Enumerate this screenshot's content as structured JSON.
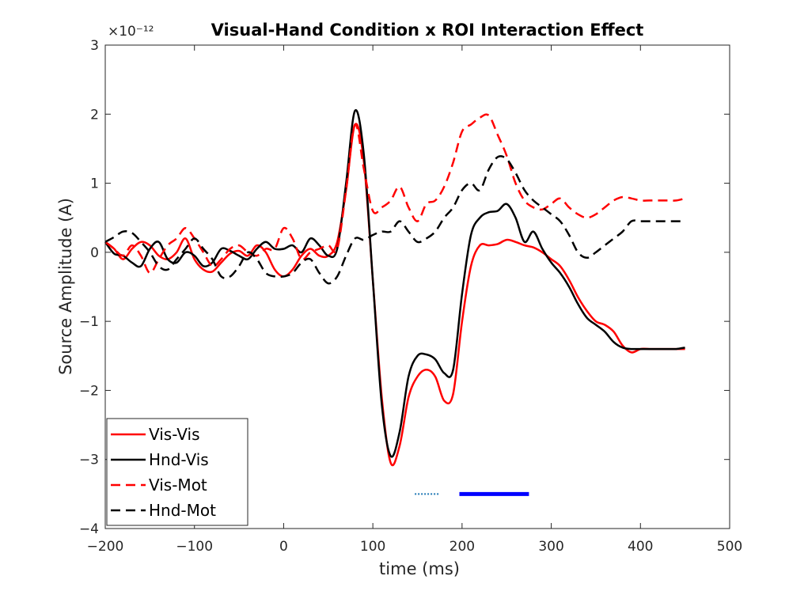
{
  "chart_data": {
    "type": "line",
    "title": "Visual-Hand Condition x ROI Interaction Effect",
    "xlabel": "time (ms)",
    "ylabel": "Source Amplitude (A)",
    "y_exponent_label": "×10⁻¹²",
    "xlim": [
      -200,
      500
    ],
    "ylim": [
      -4,
      3
    ],
    "xticks": [
      -200,
      -100,
      0,
      100,
      200,
      300,
      400,
      500
    ],
    "yticks": [
      -4,
      -3,
      -2,
      -1,
      0,
      1,
      2,
      3
    ],
    "grid": false,
    "legend_position": "bottom-left",
    "series": [
      {
        "name": "Vis-Vis",
        "color": "#ff0000",
        "style": "solid",
        "x": [
          -200,
          -190,
          -180,
          -170,
          -160,
          -150,
          -140,
          -130,
          -120,
          -110,
          -100,
          -90,
          -80,
          -70,
          -60,
          -50,
          -40,
          -30,
          -20,
          -10,
          0,
          10,
          20,
          30,
          40,
          50,
          60,
          70,
          80,
          90,
          100,
          110,
          120,
          130,
          140,
          150,
          160,
          170,
          180,
          190,
          200,
          210,
          220,
          230,
          240,
          250,
          260,
          270,
          280,
          290,
          300,
          310,
          320,
          330,
          340,
          350,
          360,
          370,
          380,
          390,
          400,
          410,
          420,
          430,
          440,
          450
        ],
        "y": [
          0.15,
          0.05,
          -0.1,
          0.05,
          0.15,
          0.1,
          -0.05,
          -0.1,
          0.0,
          0.2,
          -0.1,
          -0.25,
          -0.28,
          -0.15,
          -0.02,
          0.02,
          -0.05,
          0.1,
          0.0,
          -0.25,
          -0.35,
          -0.25,
          -0.05,
          0.05,
          -0.05,
          -0.05,
          0.15,
          0.9,
          1.85,
          1.3,
          -0.4,
          -2.1,
          -3.05,
          -2.8,
          -2.1,
          -1.8,
          -1.7,
          -1.8,
          -2.15,
          -2.05,
          -1.0,
          -0.2,
          0.1,
          0.1,
          0.12,
          0.18,
          0.15,
          0.1,
          0.07,
          0.0,
          -0.1,
          -0.2,
          -0.4,
          -0.65,
          -0.85,
          -1.0,
          -1.05,
          -1.15,
          -1.35,
          -1.45,
          -1.4,
          -1.4,
          -1.4,
          -1.4,
          -1.4,
          -1.4
        ]
      },
      {
        "name": "Hnd-Vis",
        "color": "#000000",
        "style": "solid",
        "x": [
          -200,
          -190,
          -180,
          -170,
          -160,
          -150,
          -140,
          -130,
          -120,
          -110,
          -100,
          -90,
          -80,
          -70,
          -60,
          -50,
          -40,
          -30,
          -20,
          -10,
          0,
          10,
          20,
          30,
          40,
          50,
          60,
          70,
          80,
          90,
          100,
          110,
          120,
          130,
          140,
          150,
          160,
          170,
          180,
          190,
          200,
          210,
          220,
          230,
          240,
          250,
          260,
          270,
          280,
          290,
          300,
          310,
          320,
          330,
          340,
          350,
          360,
          370,
          380,
          390,
          400,
          410,
          420,
          430,
          440,
          450
        ],
        "y": [
          0.15,
          -0.02,
          -0.05,
          -0.15,
          -0.2,
          0.05,
          0.15,
          -0.1,
          -0.15,
          0.0,
          -0.05,
          -0.2,
          -0.15,
          0.05,
          0.02,
          -0.05,
          -0.1,
          0.05,
          0.15,
          0.05,
          0.05,
          0.1,
          0.0,
          0.2,
          0.1,
          -0.05,
          0.05,
          1.0,
          2.05,
          1.4,
          -0.4,
          -2.2,
          -2.95,
          -2.6,
          -1.8,
          -1.5,
          -1.48,
          -1.55,
          -1.75,
          -1.7,
          -0.6,
          0.25,
          0.5,
          0.58,
          0.6,
          0.7,
          0.5,
          0.15,
          0.3,
          0.05,
          -0.15,
          -0.3,
          -0.5,
          -0.75,
          -0.95,
          -1.05,
          -1.15,
          -1.3,
          -1.38,
          -1.4,
          -1.4,
          -1.4,
          -1.4,
          -1.4,
          -1.4,
          -1.38
        ]
      },
      {
        "name": "Vis-Mot",
        "color": "#ff0000",
        "style": "dashed",
        "x": [
          -200,
          -190,
          -180,
          -170,
          -160,
          -150,
          -140,
          -130,
          -120,
          -110,
          -100,
          -90,
          -80,
          -70,
          -60,
          -50,
          -40,
          -30,
          -20,
          -10,
          0,
          10,
          20,
          30,
          40,
          50,
          60,
          70,
          80,
          90,
          100,
          110,
          120,
          130,
          140,
          150,
          160,
          170,
          180,
          190,
          200,
          210,
          220,
          230,
          240,
          250,
          260,
          270,
          280,
          290,
          300,
          310,
          320,
          330,
          340,
          350,
          360,
          370,
          380,
          390,
          400,
          410,
          420,
          430,
          440,
          450
        ],
        "y": [
          0.15,
          0.05,
          -0.05,
          0.1,
          -0.05,
          -0.3,
          -0.1,
          0.1,
          0.2,
          0.35,
          0.2,
          0.0,
          -0.2,
          -0.1,
          0.05,
          0.1,
          0.0,
          -0.05,
          0.05,
          0.05,
          0.35,
          0.2,
          -0.1,
          0.0,
          0.05,
          0.1,
          0.05,
          0.9,
          1.85,
          1.2,
          0.6,
          0.65,
          0.75,
          0.95,
          0.65,
          0.45,
          0.7,
          0.75,
          0.95,
          1.3,
          1.75,
          1.85,
          1.95,
          1.98,
          1.7,
          1.4,
          1.0,
          0.75,
          0.65,
          0.62,
          0.7,
          0.78,
          0.65,
          0.55,
          0.5,
          0.55,
          0.65,
          0.75,
          0.8,
          0.78,
          0.75,
          0.75,
          0.75,
          0.75,
          0.75,
          0.78
        ]
      },
      {
        "name": "Hnd-Mot",
        "color": "#000000",
        "style": "dashed",
        "x": [
          -200,
          -190,
          -180,
          -170,
          -160,
          -150,
          -140,
          -130,
          -120,
          -110,
          -100,
          -90,
          -80,
          -70,
          -60,
          -50,
          -40,
          -30,
          -20,
          -10,
          0,
          10,
          20,
          30,
          40,
          50,
          60,
          70,
          80,
          90,
          100,
          110,
          120,
          130,
          140,
          150,
          160,
          170,
          180,
          190,
          200,
          210,
          220,
          230,
          240,
          250,
          260,
          270,
          280,
          290,
          300,
          310,
          320,
          330,
          340,
          350,
          360,
          370,
          380,
          390,
          400,
          410,
          420,
          430,
          440,
          450
        ],
        "y": [
          0.15,
          0.22,
          0.3,
          0.28,
          0.15,
          0.0,
          -0.2,
          -0.25,
          -0.1,
          0.05,
          0.2,
          0.05,
          -0.1,
          -0.35,
          -0.35,
          -0.2,
          0.0,
          -0.1,
          -0.3,
          -0.35,
          -0.35,
          -0.3,
          -0.15,
          -0.1,
          -0.3,
          -0.45,
          -0.35,
          -0.05,
          0.2,
          0.18,
          0.25,
          0.3,
          0.3,
          0.45,
          0.3,
          0.15,
          0.2,
          0.3,
          0.5,
          0.65,
          0.9,
          1.0,
          0.9,
          1.2,
          1.38,
          1.35,
          1.15,
          0.9,
          0.75,
          0.65,
          0.55,
          0.45,
          0.25,
          0.0,
          -0.08,
          0.0,
          0.1,
          0.2,
          0.3,
          0.45,
          0.45,
          0.45,
          0.45,
          0.45,
          0.45,
          0.45
        ]
      }
    ],
    "significance_bars": [
      {
        "x_start": 147,
        "x_end": 175,
        "y": -3.5,
        "color": "#1f77b4",
        "style": "dotted"
      },
      {
        "x_start": 197,
        "x_end": 275,
        "y": -3.5,
        "color": "#0000ff",
        "style": "solid"
      }
    ]
  }
}
